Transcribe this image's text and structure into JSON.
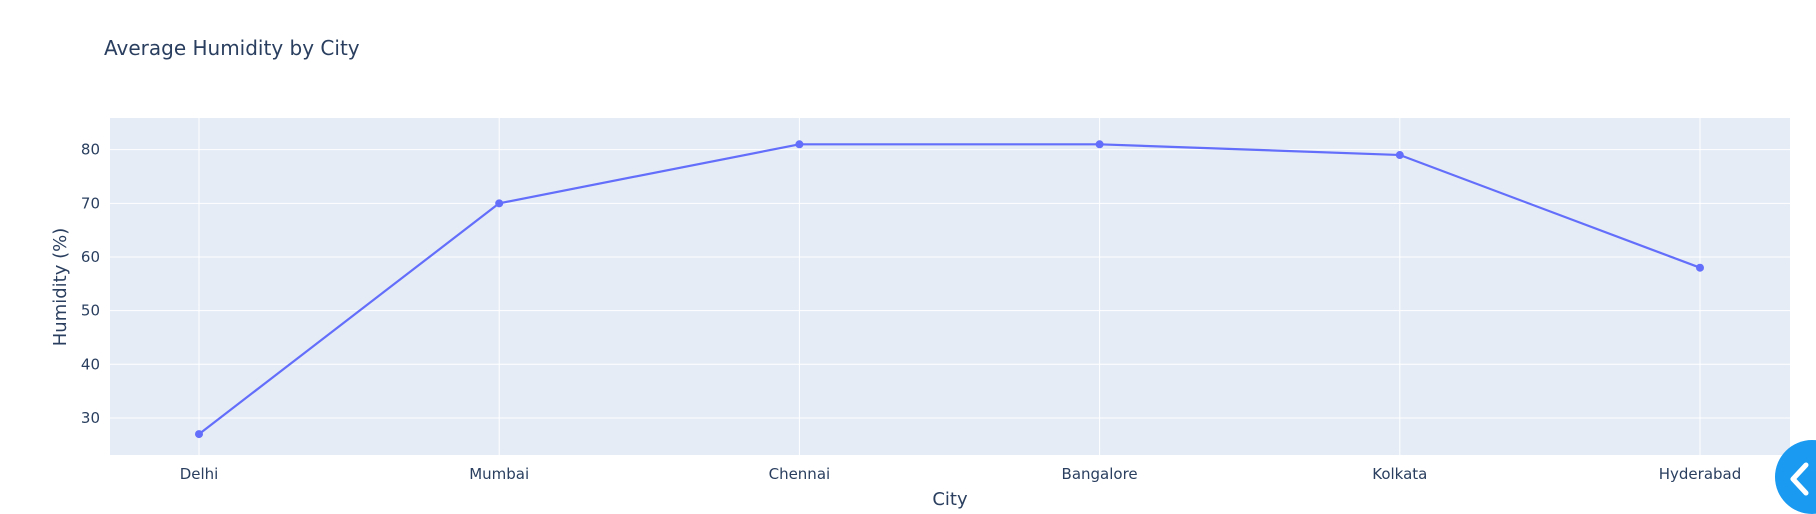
{
  "chart_data": {
    "type": "line",
    "title": "Average Humidity by City",
    "xlabel": "City",
    "ylabel": "Humidity (%)",
    "categories": [
      "Delhi",
      "Mumbai",
      "Chennai",
      "Bangalore",
      "Kolkata",
      "Hyderabad"
    ],
    "values": [
      27,
      70,
      81,
      81,
      79,
      58
    ],
    "ylim": [
      23.1,
      85.9
    ],
    "yticks": [
      30,
      40,
      50,
      60,
      70,
      80
    ],
    "grid": true,
    "legend": "none",
    "mode": "lines+markers"
  },
  "colors": {
    "line": "#636efa",
    "plot_bg": "#e5ecf6",
    "grid": "#ffffff",
    "text": "#2a3f5f",
    "toggle_button": "#1a9af0"
  },
  "widgets": {
    "side_toggle_icon": "chevron-left-icon"
  }
}
